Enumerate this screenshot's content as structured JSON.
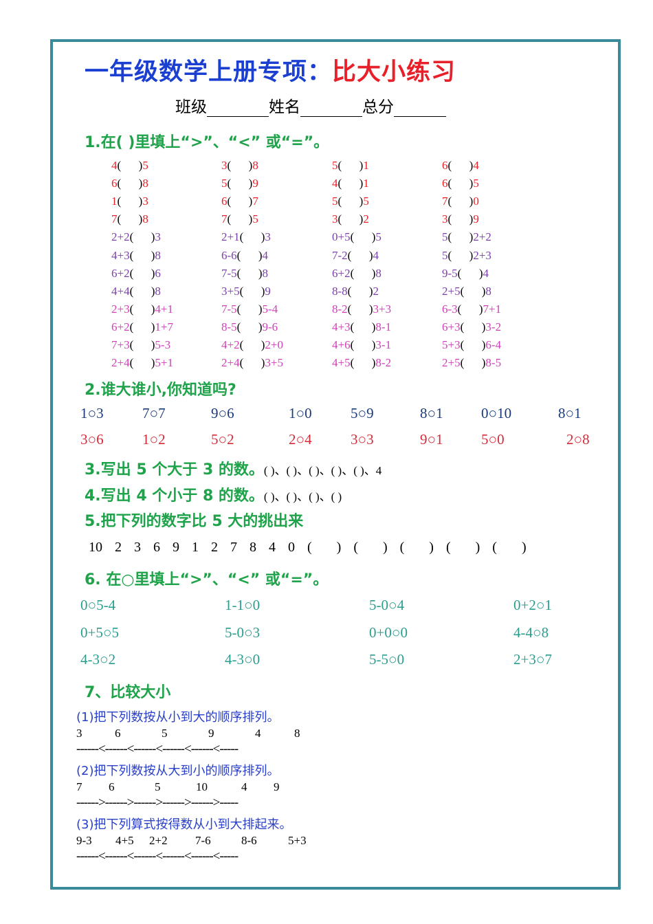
{
  "title": {
    "part1": "一年级数学上册专项：",
    "part2": "比大小练习"
  },
  "info": {
    "class_label": "班级",
    "name_label": "姓名",
    "score_label": "总分"
  },
  "colors": {
    "title_blue": "#1b3fd0",
    "title_red": "#e8202a",
    "heading_green": "#1fa34a",
    "red": "#e8202a",
    "purple": "#7a3fa8",
    "magenta": "#d040b8",
    "navy": "#1a3a7a",
    "crimson": "#d42a3a",
    "teal": "#2a9d8f",
    "sub_blue": "#2a3fc8",
    "border": "#3a8a9a"
  },
  "q1": {
    "heading": "1.在(  )里填上“>”、“<” 或“=”。",
    "rows": [
      [
        [
          "4",
          "5"
        ],
        [
          "3",
          "8"
        ],
        [
          "5",
          "1"
        ],
        [
          "6",
          "4"
        ]
      ],
      [
        [
          "6",
          "8"
        ],
        [
          "5",
          "9"
        ],
        [
          "4",
          "1"
        ],
        [
          "6",
          "5"
        ]
      ],
      [
        [
          "1",
          "3"
        ],
        [
          "6",
          "7"
        ],
        [
          "5",
          "5"
        ],
        [
          "7",
          "0"
        ]
      ],
      [
        [
          "7",
          "8"
        ],
        [
          "7",
          "5"
        ],
        [
          "3",
          "2"
        ],
        [
          "3",
          "9"
        ]
      ],
      [
        [
          "2+2",
          "3"
        ],
        [
          "2+1",
          "3"
        ],
        [
          "0+5",
          "5"
        ],
        [
          "5",
          "2+2"
        ]
      ],
      [
        [
          "4+3",
          "8"
        ],
        [
          "6-6",
          "4"
        ],
        [
          "7-2",
          "4"
        ],
        [
          "5",
          "2+3"
        ]
      ],
      [
        [
          "6+2",
          "6"
        ],
        [
          "7-5",
          "8"
        ],
        [
          "6+2",
          "8"
        ],
        [
          "9-5",
          "4"
        ]
      ],
      [
        [
          "4+4",
          "8"
        ],
        [
          "3+5",
          "9"
        ],
        [
          "8-8",
          "2"
        ],
        [
          "2+5",
          "8"
        ]
      ],
      [
        [
          "2+3",
          "4+1"
        ],
        [
          "7-5",
          "5-4"
        ],
        [
          "8-2",
          "3+3"
        ],
        [
          "6-3",
          "7+1"
        ]
      ],
      [
        [
          "6+2",
          "1+7"
        ],
        [
          "8-5",
          "9-6"
        ],
        [
          "4+3",
          "8-1"
        ],
        [
          "6+3",
          "3-2"
        ]
      ],
      [
        [
          "7+3",
          "5-3"
        ],
        [
          "4+2",
          "2+0"
        ],
        [
          "4+6",
          "3-1"
        ],
        [
          "5+3",
          "6-4"
        ]
      ],
      [
        [
          "2+4",
          "5+1"
        ],
        [
          "2+4",
          "3+5"
        ],
        [
          "4+5",
          "8-2"
        ],
        [
          "2+5",
          "8-5"
        ]
      ]
    ]
  },
  "q2": {
    "heading": "2.谁大谁小,你知道吗?",
    "row1": [
      "1○3",
      "7○7",
      "9○6",
      "1○0",
      "5○9",
      "8○1",
      "0○10",
      "8○1"
    ],
    "row2": [
      "3○6",
      "1○2",
      "5○2",
      "2○4",
      "3○3",
      "9○1",
      "5○0",
      "2○8"
    ]
  },
  "q3": {
    "heading": "3.写出 5 个大于 3 的数。",
    "blanks": "(    )、(    )、(    )、(    )、(    )、4"
  },
  "q4": {
    "heading": "4.写出 4 个小于 8 的数。",
    "blanks": "(    )、(    )、(    )、(    )"
  },
  "q5": {
    "heading": "5.把下列的数字比 5 大的挑出来",
    "numbers": "10  2  3  6  9  1  2  7  8  4  0  (    )  (    )  (    )  (    )  (    )"
  },
  "q6": {
    "heading": "6.  在○里填上“>”、“<” 或“=”。",
    "rows": [
      [
        "0○5-4",
        "1-1○0",
        "5-0○4",
        "0+2○1"
      ],
      [
        "0+5○5",
        "5-0○3",
        "0+0○0",
        "4-4○8"
      ],
      [
        "4-3○2",
        "4-3○0",
        "5-5○0",
        "2+3○7"
      ]
    ]
  },
  "q7": {
    "heading": "7、比较大小",
    "items": [
      {
        "prompt": "(1)把下列数按从小到大的顺序排列。",
        "values": [
          "3",
          "6",
          "5",
          "9",
          "4",
          "8"
        ],
        "line": "------<------<------<------<------<-----"
      },
      {
        "prompt": "(2)把下列数按从大到小的顺序排列。",
        "values": [
          "7",
          "6",
          "5",
          "10",
          "4",
          "9"
        ],
        "line": "------>------>------>------>------>-----"
      },
      {
        "prompt": "(3)把下列算式按得数从小到大排起来。",
        "values": [
          "9-3",
          "4+5",
          "2+2",
          "7-6",
          "8-6",
          "5+3"
        ],
        "line": "------<------<------<------<------<-----"
      }
    ]
  }
}
